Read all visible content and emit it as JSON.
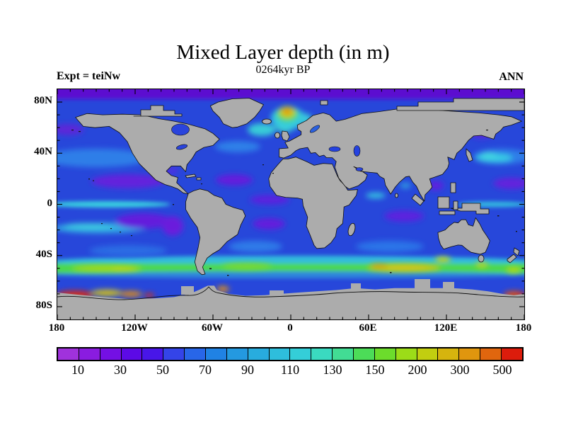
{
  "page": {
    "background": "#FFFFFF"
  },
  "header": {
    "title": "Mixed Layer depth (in m)",
    "subtitle": "0264kyr BP",
    "experiment_label": "Expt = teiNw",
    "season_label": "ANN"
  },
  "map": {
    "land_color": "#ACACAC",
    "coastline_color": "#101010",
    "frame_color": "#000000",
    "ocean_base_color": "#2747DA",
    "polar_band_color": "#5C0ED0"
  },
  "axes": {
    "lat_ticks": [
      {
        "label": "80N",
        "lat": 80
      },
      {
        "label": "40N",
        "lat": 40
      },
      {
        "label": "0",
        "lat": 0
      },
      {
        "label": "40S",
        "lat": -40
      },
      {
        "label": "80S",
        "lat": -80
      }
    ],
    "lon_ticks": [
      {
        "label": "180",
        "lon": -180
      },
      {
        "label": "120W",
        "lon": -120
      },
      {
        "label": "60W",
        "lon": -60
      },
      {
        "label": "0",
        "lon": 0
      },
      {
        "label": "60E",
        "lon": 60
      },
      {
        "label": "120E",
        "lon": 120
      },
      {
        "label": "180",
        "lon": 180
      }
    ],
    "minor_tick_deg": 10
  },
  "colorbar": {
    "labels": [
      "10",
      "30",
      "50",
      "70",
      "90",
      "110",
      "130",
      "150",
      "200",
      "300",
      "500"
    ],
    "colors": [
      "#A032DC",
      "#8A1CE0",
      "#7410E4",
      "#5C0AE6",
      "#4816E8",
      "#3444E8",
      "#2866E8",
      "#2082E4",
      "#2499E0",
      "#28ACDE",
      "#2EBEDC",
      "#34CED8",
      "#3ADAC0",
      "#42DC94",
      "#4CDC58",
      "#6CDC2C",
      "#9CDC18",
      "#C2CE10",
      "#D6B40E",
      "#E0960E",
      "#E0660E",
      "#DC1C0C"
    ],
    "units": "m",
    "position": "bottom"
  },
  "chart_data": {
    "type": "heatmap",
    "title": "Mixed Layer depth (in m)",
    "subtitle": "0264kyr BP",
    "annotation_left": "Expt = teiNw",
    "annotation_right": "ANN",
    "projection": "equirectangular world map",
    "x_range_deg_lon": [
      -180,
      180
    ],
    "y_range_deg_lat": [
      -90,
      90
    ],
    "x_tick_labels": [
      "180",
      "120W",
      "60W",
      "0",
      "60E",
      "120E",
      "180"
    ],
    "y_tick_labels": [
      "80N",
      "40N",
      "0",
      "40S",
      "80S"
    ],
    "minor_ticks_every_deg": 10,
    "colorbar_labels_m": [
      10,
      30,
      50,
      70,
      90,
      110,
      130,
      150,
      200,
      300,
      500
    ],
    "colorbar_level_boundaries_m": [
      10,
      20,
      30,
      40,
      50,
      60,
      70,
      80,
      90,
      100,
      110,
      120,
      130,
      140,
      150,
      175,
      200,
      250,
      300,
      400,
      500
    ],
    "colorbar_cell_colors": [
      "#A032DC",
      "#8A1CE0",
      "#7410E4",
      "#5C0AE6",
      "#4816E8",
      "#3444E8",
      "#2866E8",
      "#2082E4",
      "#2499E0",
      "#28ACDE",
      "#2EBEDC",
      "#34CED8",
      "#3ADAC0",
      "#42DC94",
      "#4CDC58",
      "#6CDC2C",
      "#9CDC18",
      "#C2CE10",
      "#D6B40E",
      "#E0960E",
      "#E0660E",
      "#DC1C0C"
    ],
    "features": [
      {
        "region": "Arctic Ocean band 85-90N",
        "approx_depth_m": "10-20 (violet)"
      },
      {
        "region": "Subtropical gyres: NE Pacific ~15N, SE Pacific ~5-20S, N Atlantic ~20N, S Atlantic ~15S, S Indian ~10S, S China Sea",
        "approx_depth_m": "10-30 (purple)"
      },
      {
        "region": "Most mid-latitude open ocean",
        "approx_depth_m": "30-70 (blue)"
      },
      {
        "region": "Equatorial Pacific band along 0 deg",
        "approx_depth_m": "90-110 (cyan)"
      },
      {
        "region": "Kuroshio extension east of Japan ~35N",
        "approx_depth_m": "90-110 (cyan)"
      },
      {
        "region": "North Atlantic subpolar / Greenland-Iceland-Norwegian Sea ~65-75N",
        "approx_depth_m": "150-300 (green-yellow-orange maximum)"
      },
      {
        "region": "Circumpolar Southern Ocean band 45-55S",
        "approx_depth_m": "130-200 (green-yellow)"
      },
      {
        "region": "South Indian Ocean 45-52S core 60E-110E",
        "approx_depth_m": "150-300 (yellow)"
      },
      {
        "region": "Antarctic coastal zones: Ross Sea sector 180-130W and far east ~170E-180, Weddell Sea ~60W",
        "approx_depth_m": "300-500+ (orange-red)"
      },
      {
        "region": "Continents and Antarctica",
        "approx_depth_m": "land mask (gray)"
      }
    ]
  }
}
